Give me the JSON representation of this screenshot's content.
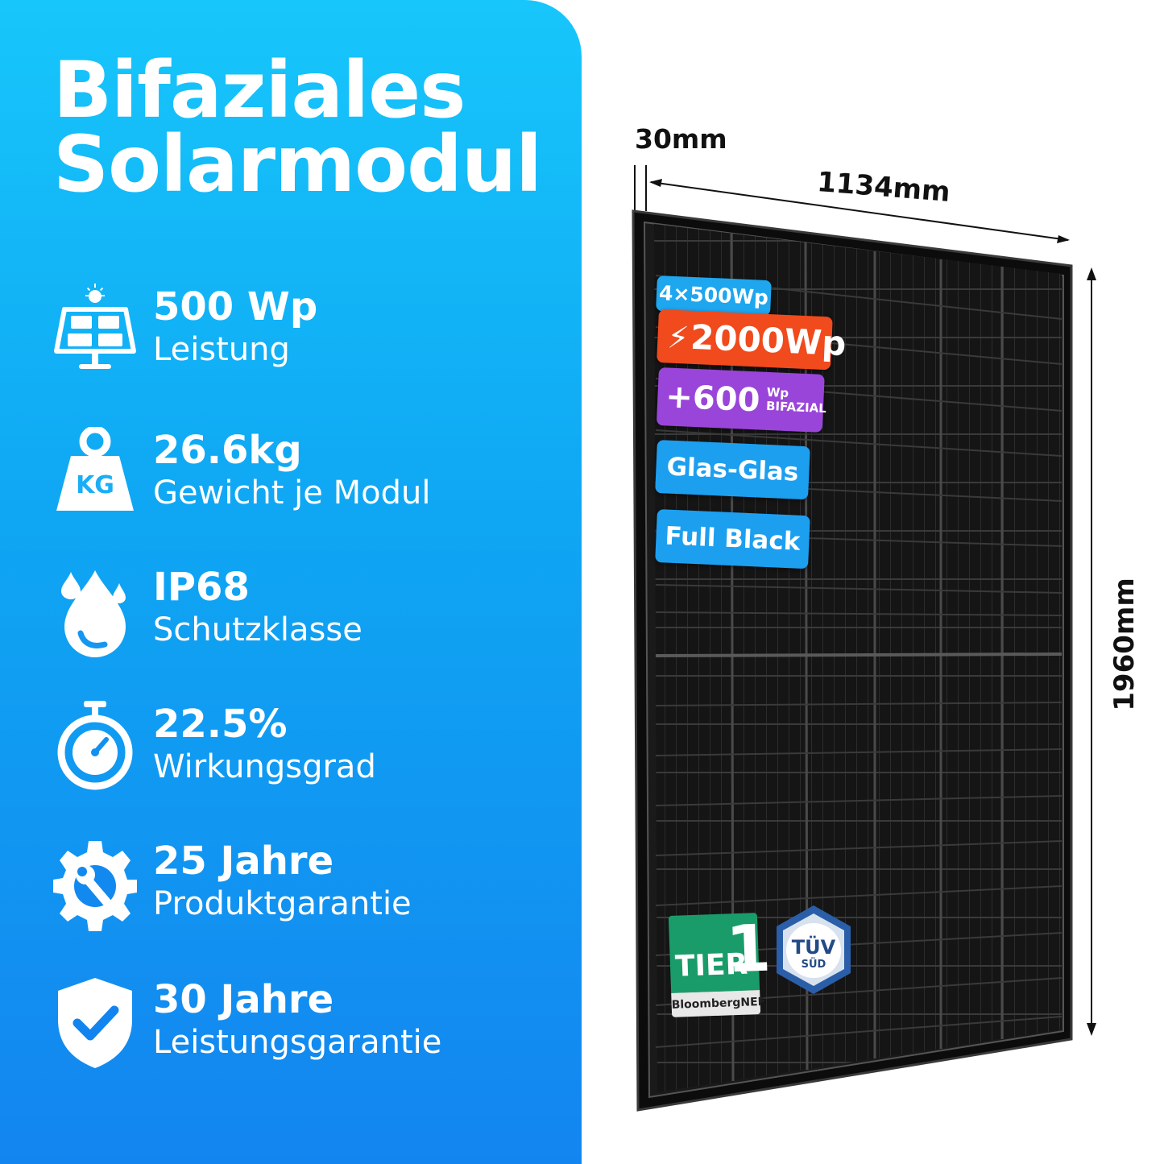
{
  "title": {
    "line1": "Bifaziales",
    "line2": "Solarmodul"
  },
  "features": [
    {
      "icon": "solar-panel-icon",
      "value": "500 Wp",
      "label": "Leistung"
    },
    {
      "icon": "weight-kg-icon",
      "icon_text": "KG",
      "value": "26.6kg",
      "label": "Gewicht je Modul"
    },
    {
      "icon": "water-drop-icon",
      "value": "IP68",
      "label": "Schutzklasse"
    },
    {
      "icon": "stopwatch-icon",
      "value": "22.5%",
      "label": "Wirkungsgrad"
    },
    {
      "icon": "gear-wrench-icon",
      "value": "25 Jahre",
      "label": "Produktgarantie"
    },
    {
      "icon": "shield-check-icon",
      "value": "30 Jahre",
      "label": "Leistungsgarantie"
    }
  ],
  "dimensions": {
    "thickness": "30mm",
    "width": "1134mm",
    "height": "1960mm"
  },
  "badges": {
    "modules": "4×500Wp",
    "total_power": "2000Wp",
    "bifacial_value": "+600",
    "bifacial_unit": "Wp",
    "bifacial_label": "BIFAZIAL",
    "glass": "Glas-Glas",
    "color": "Full Black"
  },
  "certs": {
    "tier_word": "TIER",
    "tier_num": "1",
    "tier_source": "BloombergNEF",
    "tuv_mark": "TÜV",
    "tuv_sub": "SÜD"
  },
  "colors": {
    "panel_gradient_top": "#17c6fb",
    "panel_gradient_bottom": "#1385f0",
    "badge_blue": "#1ea6ef",
    "badge_orange": "#f04a1d",
    "badge_purple": "#9a45d9",
    "tier_green": "#1a9c6a"
  }
}
